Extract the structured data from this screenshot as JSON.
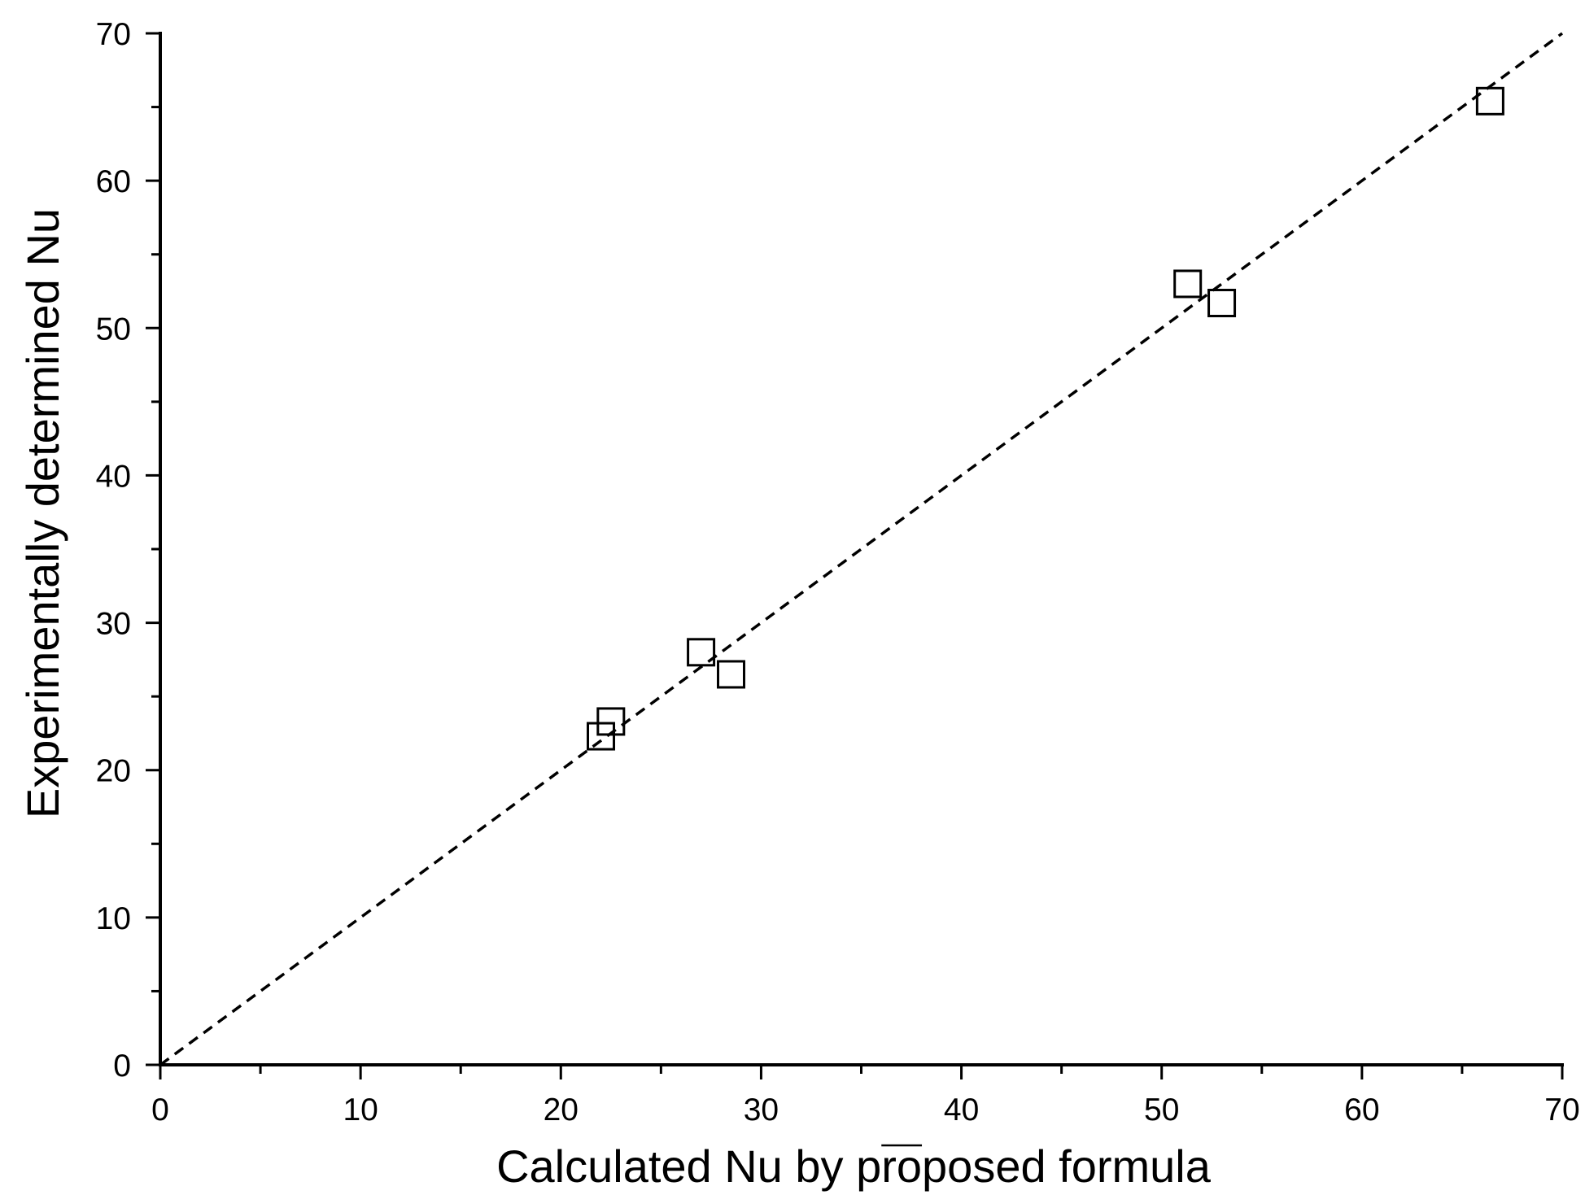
{
  "chart_data": {
    "type": "scatter",
    "xlabel": "Calculated Nu by proposed formula",
    "ylabel": "Experimentally determined Nu",
    "overlined_term": "Nu",
    "xlim": [
      0,
      70
    ],
    "ylim": [
      0,
      70
    ],
    "x_ticks": [
      0,
      10,
      20,
      30,
      40,
      50,
      60,
      70
    ],
    "y_ticks": [
      0,
      10,
      20,
      30,
      40,
      50,
      60,
      70
    ],
    "grid": false,
    "legend": "none",
    "series": [
      {
        "marker": "open-square",
        "points": [
          {
            "x": 22.0,
            "y": 22.3
          },
          {
            "x": 22.5,
            "y": 23.3
          },
          {
            "x": 27.0,
            "y": 28.0
          },
          {
            "x": 28.5,
            "y": 26.5
          },
          {
            "x": 51.3,
            "y": 53.0
          },
          {
            "x": 53.0,
            "y": 51.7
          },
          {
            "x": 66.4,
            "y": 65.4
          }
        ]
      }
    ],
    "reference_line": {
      "style": "dashed",
      "from": [
        0,
        0
      ],
      "to": [
        70,
        70
      ]
    },
    "colors": {
      "axis": "#000000",
      "marker": "#000000",
      "background": "#ffffff"
    }
  }
}
